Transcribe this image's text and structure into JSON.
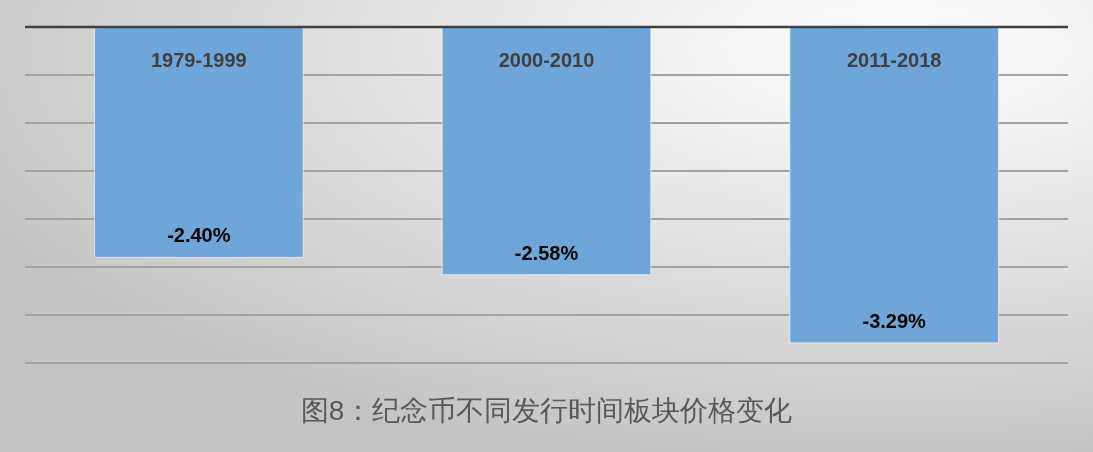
{
  "chart_data": {
    "type": "bar",
    "title": "图8：纪念币不同发行时间板块价格变化",
    "categories": [
      "1979-1999",
      "2000-2010",
      "2011-2018"
    ],
    "values": [
      -2.4,
      -2.58,
      -3.29
    ],
    "value_labels": [
      "-2.40%",
      "-2.58%",
      "-3.29%"
    ],
    "color": "#6fa6d9",
    "ylim": [
      -3.5,
      0
    ],
    "yticks": [
      {
        "value": 0,
        "label": null
      },
      {
        "value": -0.5,
        "label": null
      },
      {
        "value": -1,
        "label": null
      },
      {
        "value": -1.5,
        "label": null
      },
      {
        "value": -2,
        "label": null
      },
      {
        "value": -2.5,
        "label": null
      },
      {
        "value": -3,
        "label": null
      },
      {
        "value": -3.5,
        "label": null
      }
    ],
    "grid": "y",
    "tick_labels": "x"
  }
}
